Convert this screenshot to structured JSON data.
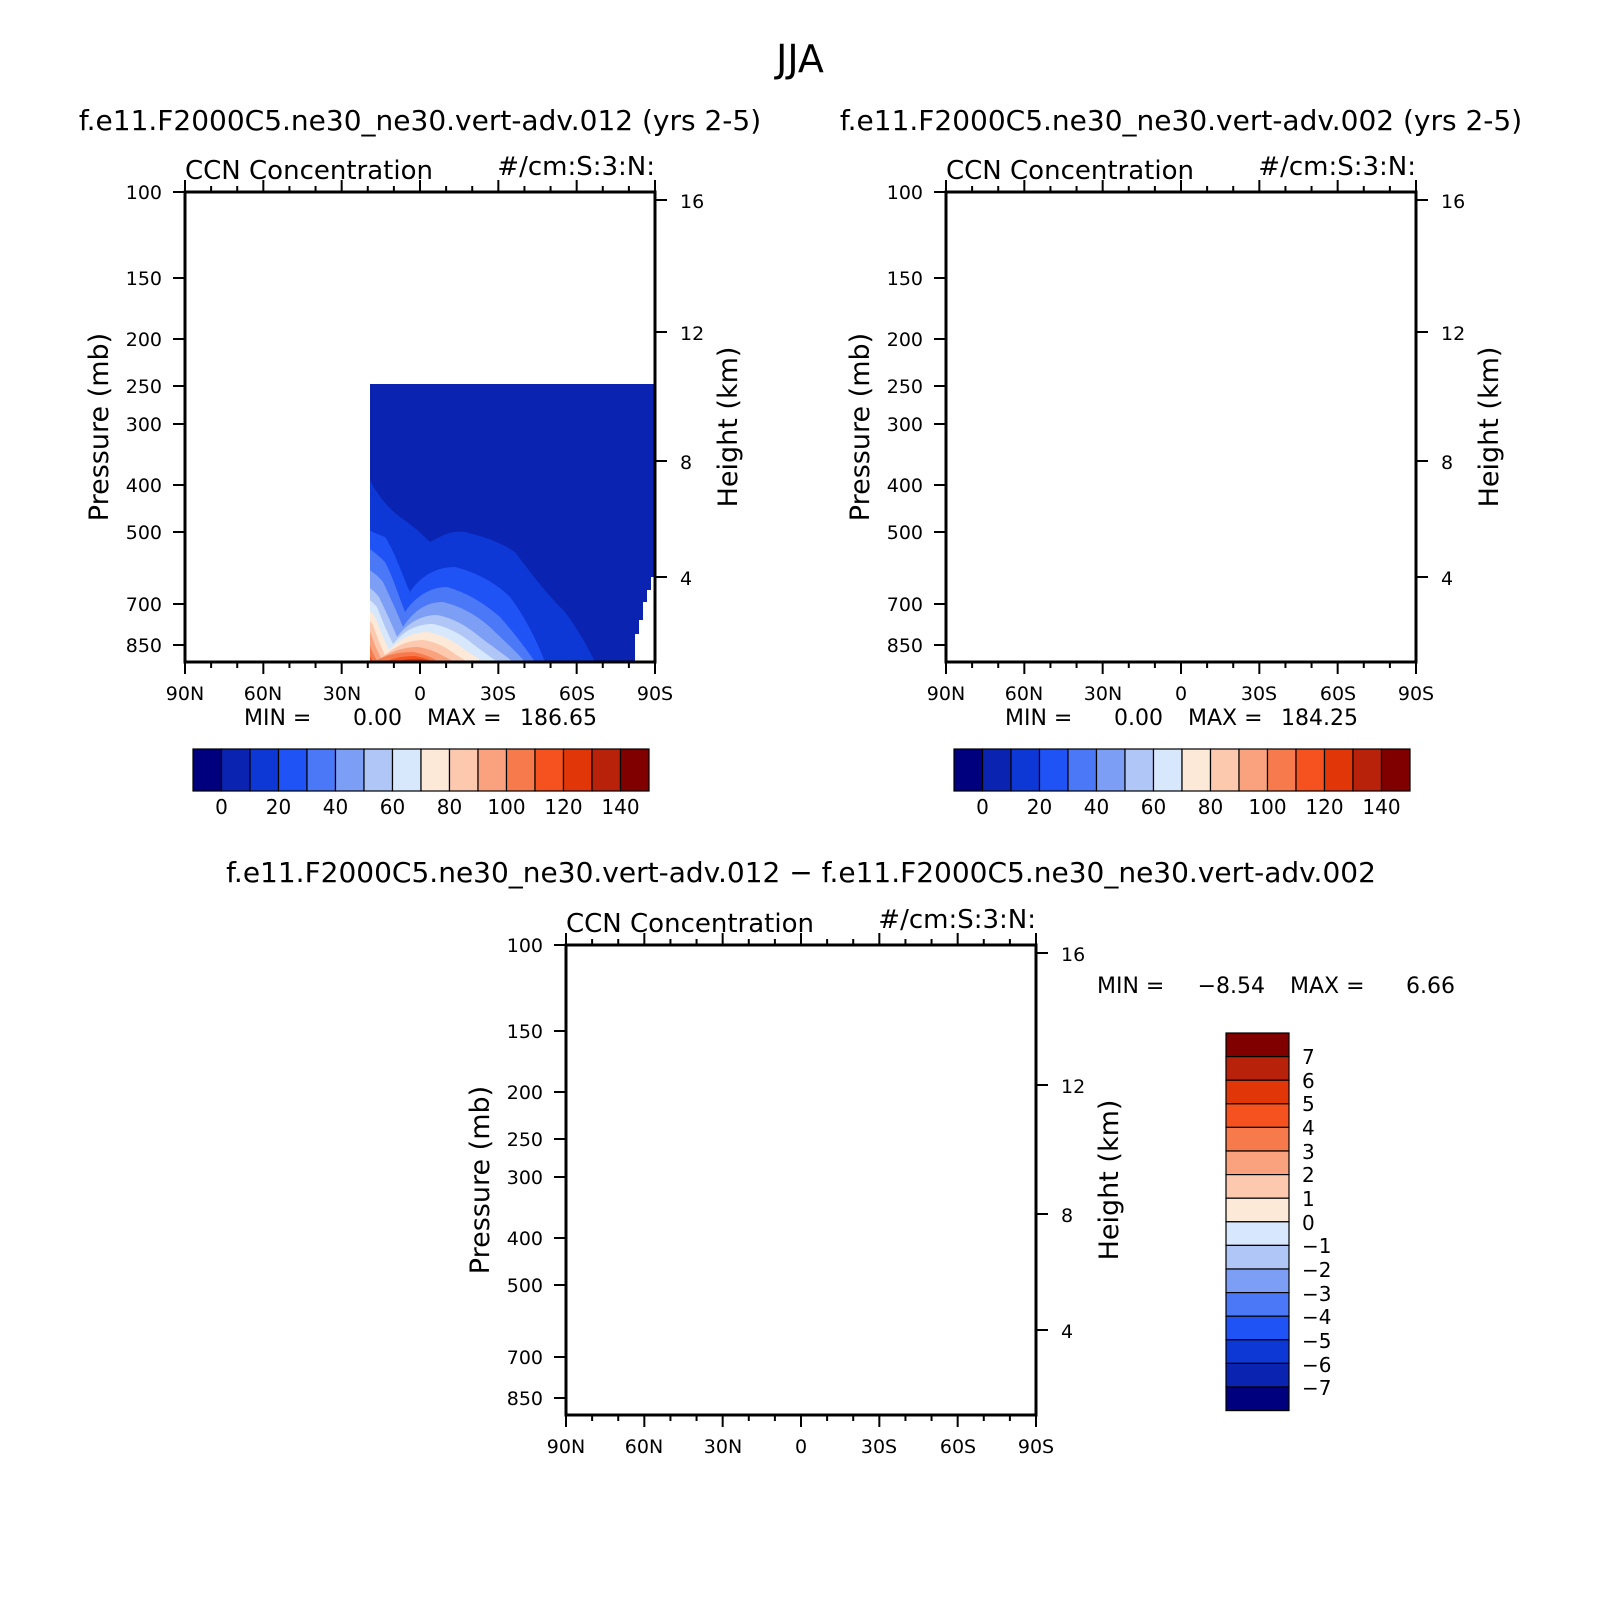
{
  "season": "JJA",
  "chart_data": [
    {
      "type": "heatmap",
      "case_title": "f.e11.F2000C5.ne30_ne30.vert-adv.012 (yrs 2-5)",
      "left_title": "CCN Concentration",
      "right_title": "#/cm:S:3:N:",
      "ylabel": "Pressure (mb)",
      "ylabel_right": "Height (km)",
      "x_ticks": [
        "90N",
        "60N",
        "30N",
        "0",
        "30S",
        "60S",
        "90S"
      ],
      "y_ticks": [
        "100",
        "150",
        "200",
        "250",
        "300",
        "400",
        "500",
        "700",
        "850"
      ],
      "y_ticks_right": [
        "16",
        "12",
        "8",
        "4"
      ],
      "min_label": "MIN =",
      "min_value": "0.00",
      "max_label": "MAX =",
      "max_value": "186.65",
      "colorbar_labels": [
        "0",
        "20",
        "40",
        "60",
        "80",
        "100",
        "120",
        "140"
      ],
      "colorbar_colors": [
        "#00007f",
        "#0a23b0",
        "#0d38d6",
        "#1f53f5",
        "#4a78f7",
        "#7d9ef5",
        "#b0c6f7",
        "#d8e8fc",
        "#fde9d8",
        "#fcc9ae",
        "#faa27e",
        "#f77a4c",
        "#f5521f",
        "#e03608",
        "#b8220a",
        "#800000"
      ]
    },
    {
      "type": "heatmap",
      "case_title": "f.e11.F2000C5.ne30_ne30.vert-adv.002 (yrs 2-5)",
      "left_title": "CCN Concentration",
      "right_title": "#/cm:S:3:N:",
      "ylabel": "Pressure (mb)",
      "ylabel_right": "Height (km)",
      "x_ticks": [
        "90N",
        "60N",
        "30N",
        "0",
        "30S",
        "60S",
        "90S"
      ],
      "y_ticks": [
        "100",
        "150",
        "200",
        "250",
        "300",
        "400",
        "500",
        "700",
        "850"
      ],
      "y_ticks_right": [
        "16",
        "12",
        "8",
        "4"
      ],
      "min_label": "MIN =",
      "min_value": "0.00",
      "max_label": "MAX =",
      "max_value": "184.25",
      "colorbar_labels": [
        "0",
        "20",
        "40",
        "60",
        "80",
        "100",
        "120",
        "140"
      ],
      "colorbar_colors": [
        "#00007f",
        "#0a23b0",
        "#0d38d6",
        "#1f53f5",
        "#4a78f7",
        "#7d9ef5",
        "#b0c6f7",
        "#d8e8fc",
        "#fde9d8",
        "#fcc9ae",
        "#faa27e",
        "#f77a4c",
        "#f5521f",
        "#e03608",
        "#b8220a",
        "#800000"
      ]
    },
    {
      "type": "heatmap",
      "case_title": "f.e11.F2000C5.ne30_ne30.vert-adv.012 − f.e11.F2000C5.ne30_ne30.vert-adv.002",
      "left_title": "CCN Concentration",
      "right_title": "#/cm:S:3:N:",
      "ylabel": "Pressure (mb)",
      "ylabel_right": "Height (km)",
      "x_ticks": [
        "90N",
        "60N",
        "30N",
        "0",
        "30S",
        "60S",
        "90S"
      ],
      "y_ticks": [
        "100",
        "150",
        "200",
        "250",
        "300",
        "400",
        "500",
        "700",
        "850"
      ],
      "y_ticks_right": [
        "16",
        "12",
        "8",
        "4"
      ],
      "min_label": "MIN =",
      "min_value": "−8.54",
      "max_label": "MAX =",
      "max_value": "6.66",
      "colorbar_labels": [
        "7",
        "6",
        "5",
        "4",
        "3",
        "2",
        "1",
        "0",
        "−1",
        "−2",
        "−3",
        "−4",
        "−5",
        "−6",
        "−7"
      ],
      "colorbar_colors": [
        "#800000",
        "#b8220a",
        "#e03608",
        "#f5521f",
        "#f77a4c",
        "#faa27e",
        "#fcc9ae",
        "#fde9d8",
        "#d8e8fc",
        "#b0c6f7",
        "#7d9ef5",
        "#4a78f7",
        "#1f53f5",
        "#0d38d6",
        "#0a23b0",
        "#00007f"
      ]
    }
  ]
}
